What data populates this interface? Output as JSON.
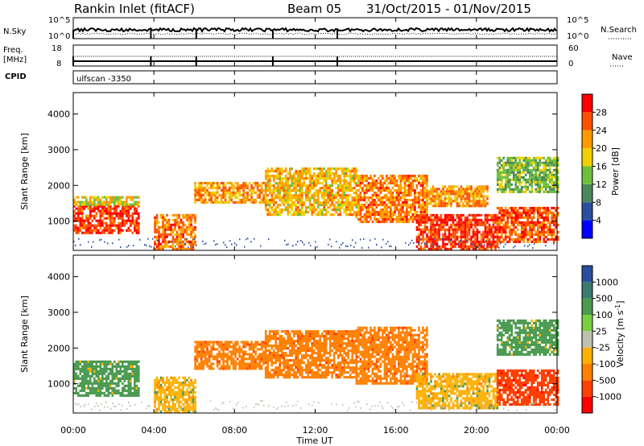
{
  "header": {
    "station": "Rankin Inlet (fitACF)",
    "beam": "Beam 05",
    "date_range": "31/Oct/2015 - 01/Nov/2015"
  },
  "summary": {
    "nsky_label": "N.Sky",
    "nsky_top": "10^5",
    "nsky_bottom": "10^0",
    "nsearch_label": "N.Search",
    "nsearch_top": "10^5",
    "nsearch_bottom": "10^0",
    "freq_label_1": "Freq.",
    "freq_label_2": "[MHz]",
    "freq_top": "18",
    "freq_bottom": "8",
    "nave_label": "Nave",
    "nave_top": "60",
    "nave_bottom": "0",
    "cpid_label": "CPID",
    "cpid_value": "ulfscan -3350"
  },
  "colors": {
    "power_scale": [
      "#0000ff",
      "#2a4fa0",
      "#4a8a5a",
      "#6fbf3f",
      "#f0d000",
      "#ff9a00",
      "#ff5000",
      "#ff0000"
    ],
    "velocity_scale": [
      "#2a4fa0",
      "#3a7a70",
      "#4a9a50",
      "#7ad040",
      "#c0c0b0",
      "#ffb000",
      "#ff8000",
      "#ff4000",
      "#ff0000"
    ],
    "power_scale_ticks": [
      "4",
      "8",
      "12",
      "16",
      "20",
      "24",
      "28"
    ],
    "velocity_scale_ticks": [
      "1000",
      "500",
      "100",
      "25",
      "-25",
      "-100",
      "-500",
      "-1000"
    ]
  },
  "chart_data": [
    {
      "type": "heatmap",
      "title": "",
      "ylabel": "Slant Range [km]",
      "xlabel": "",
      "colorbar_label": "Power [dB]",
      "ylim": [
        180,
        4600
      ],
      "xlim": [
        "00:00",
        "24:00"
      ],
      "yticks": [
        "1000",
        "2000",
        "3000",
        "4000"
      ],
      "colorbar_ticks": [
        "4",
        "8",
        "12",
        "16",
        "20",
        "24",
        "28"
      ],
      "echo_bands": [
        {
          "t_start": 0.0,
          "t_end": 3.2,
          "range_low": 650,
          "range_high": 1450,
          "power_dB": 28
        },
        {
          "t_start": 0.0,
          "t_end": 3.2,
          "range_low": 1450,
          "range_high": 1700,
          "power_dB": 18
        },
        {
          "t_start": 4.0,
          "t_end": 6.0,
          "range_low": 200,
          "range_high": 1200,
          "power_dB": 24
        },
        {
          "t_start": 6.0,
          "t_end": 9.5,
          "range_low": 1500,
          "range_high": 2100,
          "power_dB": 22
        },
        {
          "t_start": 9.5,
          "t_end": 14.0,
          "range_low": 1200,
          "range_high": 2500,
          "power_dB": 20
        },
        {
          "t_start": 14.0,
          "t_end": 17.5,
          "range_low": 1000,
          "range_high": 2300,
          "power_dB": 24
        },
        {
          "t_start": 17.0,
          "t_end": 21.0,
          "range_low": 250,
          "range_high": 1200,
          "power_dB": 28
        },
        {
          "t_start": 17.5,
          "t_end": 20.5,
          "range_low": 1400,
          "range_high": 2000,
          "power_dB": 22
        },
        {
          "t_start": 21.0,
          "t_end": 24.0,
          "range_low": 400,
          "range_high": 1400,
          "power_dB": 26
        },
        {
          "t_start": 21.0,
          "t_end": 24.0,
          "range_low": 1800,
          "range_high": 2800,
          "power_dB": 14
        }
      ]
    },
    {
      "type": "heatmap",
      "title": "",
      "ylabel": "Slant Range [km]",
      "xlabel": "Time UT",
      "colorbar_label": "Velocity [m s^-1]",
      "ylim": [
        180,
        4600
      ],
      "xlim": [
        "00:00",
        "24:00"
      ],
      "yticks": [
        "1000",
        "2000",
        "3000",
        "4000"
      ],
      "xticks": [
        "00:00",
        "04:00",
        "08:00",
        "12:00",
        "16:00",
        "20:00",
        "00:00"
      ],
      "colorbar_ticks": [
        "1000",
        "500",
        "100",
        "25",
        "-25",
        "-100",
        "-500",
        "-1000"
      ],
      "echo_bands": [
        {
          "t_start": 0.0,
          "t_end": 3.2,
          "range_low": 650,
          "range_high": 1650,
          "velocity_mps": 100
        },
        {
          "t_start": 4.0,
          "t_end": 6.0,
          "range_low": 200,
          "range_high": 1200,
          "velocity_mps": -100
        },
        {
          "t_start": 6.0,
          "t_end": 9.5,
          "range_low": 1400,
          "range_high": 2200,
          "velocity_mps": -500
        },
        {
          "t_start": 9.5,
          "t_end": 14.0,
          "range_low": 1200,
          "range_high": 2500,
          "velocity_mps": -500
        },
        {
          "t_start": 14.0,
          "t_end": 17.5,
          "range_low": 1000,
          "range_high": 2600,
          "velocity_mps": -500
        },
        {
          "t_start": 17.0,
          "t_end": 21.0,
          "range_low": 300,
          "range_high": 1300,
          "velocity_mps": -100
        },
        {
          "t_start": 21.0,
          "t_end": 24.0,
          "range_low": 400,
          "range_high": 1400,
          "velocity_mps": -1000
        },
        {
          "t_start": 21.0,
          "t_end": 24.0,
          "range_low": 1800,
          "range_high": 2800,
          "velocity_mps": 100
        }
      ]
    }
  ]
}
